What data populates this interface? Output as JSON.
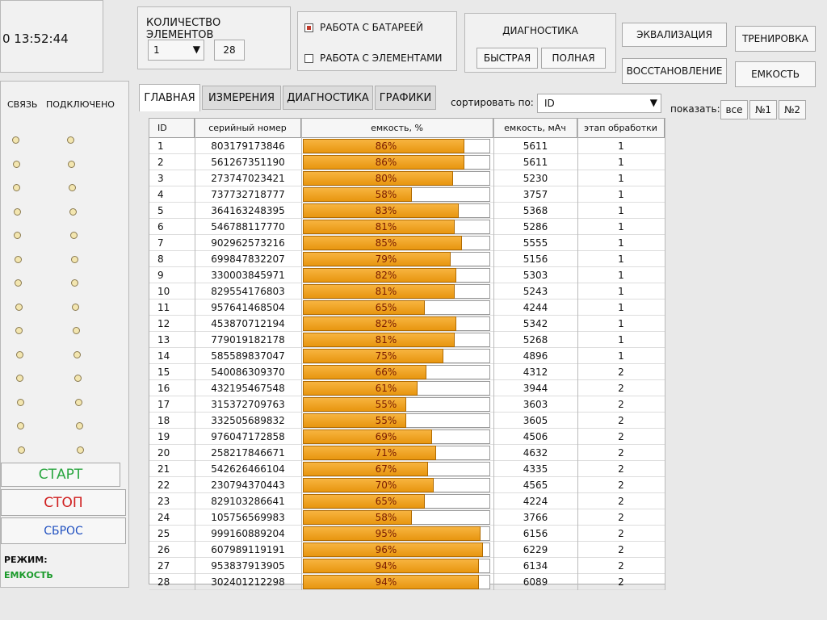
{
  "side": {
    "time": "0 13:52:44",
    "col_link": "СВЯЗЬ",
    "col_connected": "ПОДКЛЮЧЕНО",
    "start": "СТАРТ",
    "stop": "СТОП",
    "reset": "СБРОС",
    "mode_label": "РЕЖИМ:",
    "mode_value": "ЕМКОСТЬ"
  },
  "header": {
    "count_label": "КОЛИЧЕСТВО ЭЛЕМЕНТОВ",
    "count_select": 1,
    "count_value": 28,
    "mode_battery": "РАБОТА С БАТАРЕЕЙ",
    "mode_cells": "РАБОТА С ЭЛЕМЕНТАМИ",
    "diag_title": "ДИАГНОСТИКА",
    "diag_fast": "БЫСТРАЯ",
    "diag_full": "ПОЛНАЯ",
    "buttons": [
      "ЭКВАЛИЗАЦИЯ",
      "ТРЕНИРОВКА",
      "ВОССТАНОВЛЕНИЕ",
      "ЕМКОСТЬ"
    ]
  },
  "tabs": [
    "ГЛАВНАЯ",
    "ИЗМЕРЕНИЯ",
    "ДИАГНОСТИКА",
    "ГРАФИКИ"
  ],
  "sort": {
    "label": "сортировать по:",
    "value": "ID"
  },
  "show": {
    "label": "показать:",
    "options": [
      "все",
      "№1",
      "№2"
    ]
  },
  "table": {
    "columns": [
      "ID",
      "серийный номер",
      "емкость, %",
      "емкость, мАч",
      "этап обработки"
    ],
    "rows": [
      [
        1,
        "803179173846",
        86,
        "86%",
        5611,
        1
      ],
      [
        2,
        "561267351190",
        86,
        "86%",
        5611,
        1
      ],
      [
        3,
        "273747023421",
        80,
        "80%",
        5230,
        1
      ],
      [
        4,
        "737732718777",
        58,
        "58%",
        3757,
        1
      ],
      [
        5,
        "364163248395",
        83,
        "83%",
        5368,
        1
      ],
      [
        6,
        "546788117770",
        81,
        "81%",
        5286,
        1
      ],
      [
        7,
        "902962573216",
        85,
        "85%",
        5555,
        1
      ],
      [
        8,
        "699847832207",
        79,
        "79%",
        5156,
        1
      ],
      [
        9,
        "330003845971",
        82,
        "82%",
        5303,
        1
      ],
      [
        10,
        "829554176803",
        81,
        "81%",
        5243,
        1
      ],
      [
        11,
        "957641468504",
        65,
        "65%",
        4244,
        1
      ],
      [
        12,
        "453870712194",
        82,
        "82%",
        5342,
        1
      ],
      [
        13,
        "779019182178",
        81,
        "81%",
        5268,
        1
      ],
      [
        14,
        "585589837047",
        75,
        "75%",
        4896,
        1
      ],
      [
        15,
        "540086309370",
        66,
        "66%",
        4312,
        2
      ],
      [
        16,
        "432195467548",
        61,
        "61%",
        3944,
        2
      ],
      [
        17,
        "315372709763",
        55,
        "55%",
        3603,
        2
      ],
      [
        18,
        "332505689832",
        55,
        "55%",
        3605,
        2
      ],
      [
        19,
        "976047172858",
        69,
        "69%",
        4506,
        2
      ],
      [
        20,
        "258217846671",
        71,
        "71%",
        4632,
        2
      ],
      [
        21,
        "542626466104",
        67,
        "67%",
        4335,
        2
      ],
      [
        22,
        "230794370443",
        70,
        "70%",
        4565,
        2
      ],
      [
        23,
        "829103286641",
        65,
        "65%",
        4224,
        2
      ],
      [
        24,
        "105756569983",
        58,
        "58%",
        3766,
        2
      ],
      [
        25,
        "999160889204",
        95,
        "95%",
        6156,
        2
      ],
      [
        26,
        "607989119191",
        96,
        "96%",
        6229,
        2
      ],
      [
        27,
        "953837913905",
        94,
        "94%",
        6134,
        2
      ],
      [
        28,
        "302401212298",
        94,
        "94%",
        6089,
        2
      ]
    ]
  }
}
